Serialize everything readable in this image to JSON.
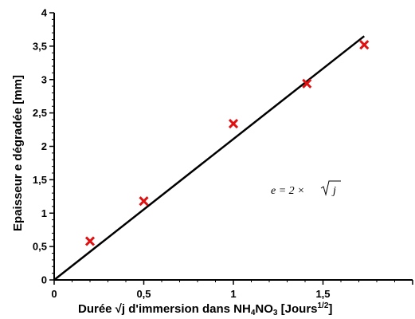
{
  "chart_data": {
    "type": "scatter",
    "xlabel_main": "Durée √j d'immersion dans NH",
    "xlabel_sub1": "4",
    "xlabel_mid": "NO",
    "xlabel_sub2": "3",
    "xlabel_tail": " [Jours",
    "xlabel_sup": "1/2",
    "xlabel_end": "]",
    "ylabel": "Epaisseur e dégradée [mm]",
    "xlim": [
      0,
      2.0
    ],
    "ylim": [
      0,
      4
    ],
    "x_ticks": [
      0,
      0.5,
      1,
      1.5
    ],
    "x_tick_labels": [
      "0",
      "0,5",
      "1",
      "1,5"
    ],
    "y_ticks": [
      0,
      0.5,
      1,
      1.5,
      2,
      2.5,
      3,
      3.5,
      4
    ],
    "y_tick_labels": [
      "0",
      "0,5",
      "1",
      "1,5",
      "2",
      "2,5",
      "3",
      "3,5",
      "4"
    ],
    "points": [
      {
        "x": 0.2,
        "y": 0.58
      },
      {
        "x": 0.5,
        "y": 1.18
      },
      {
        "x": 1.0,
        "y": 2.34
      },
      {
        "x": 1.41,
        "y": 2.94
      },
      {
        "x": 1.73,
        "y": 3.52
      }
    ],
    "fit_line": {
      "x": [
        0,
        1.73
      ],
      "y": [
        0,
        3.65
      ]
    },
    "equation": {
      "lhs": "e = 2 ×",
      "radicand": "j"
    },
    "colors": {
      "marker": "#e01010",
      "line": "#000000"
    }
  }
}
